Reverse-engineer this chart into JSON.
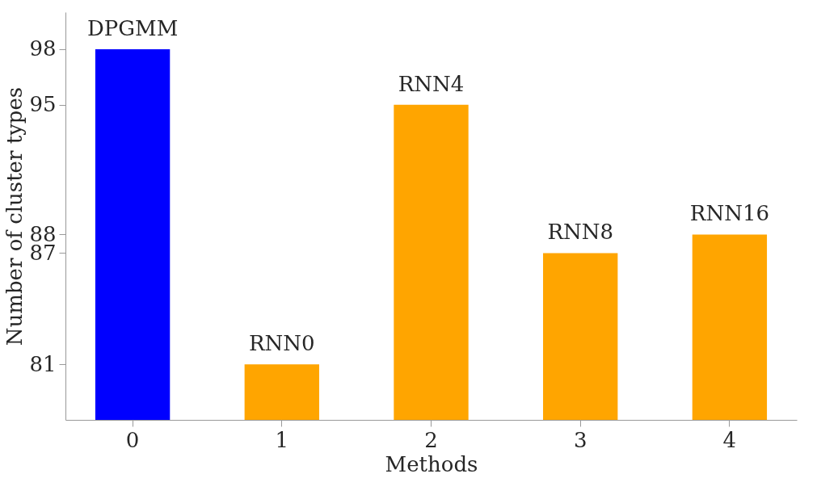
{
  "chart_data": {
    "type": "bar",
    "xlabel": "Methods",
    "ylabel": "Number of cluster types",
    "categories": [
      "0",
      "1",
      "2",
      "3",
      "4"
    ],
    "values": [
      98,
      81,
      95,
      87,
      88
    ],
    "colors": [
      "#0000ff",
      "#ffa500",
      "#ffa500",
      "#ffa500",
      "#ffa500"
    ],
    "ylim": [
      78,
      100
    ],
    "yticks": [
      81,
      87,
      88,
      95,
      98
    ],
    "grid": false,
    "annotations": [
      {
        "text": "DPGMM",
        "x": "0",
        "y": 98
      },
      {
        "text": "RNN0",
        "x": "1",
        "y": 81
      },
      {
        "text": "RNN4",
        "x": "2",
        "y": 95
      },
      {
        "text": "RNN8",
        "x": "3",
        "y": 87
      },
      {
        "text": "RNN16",
        "x": "4",
        "y": 88
      }
    ]
  }
}
